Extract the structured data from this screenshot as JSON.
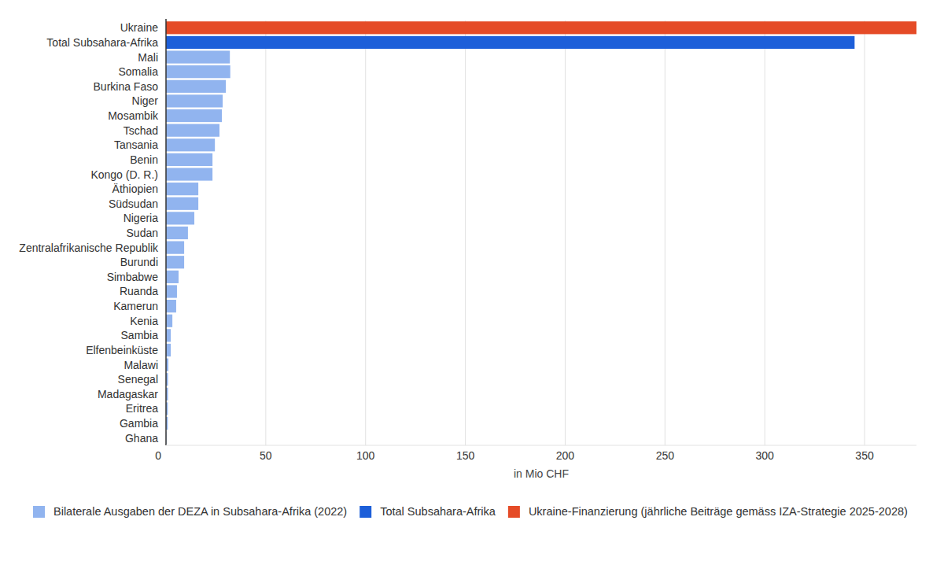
{
  "chart_data": {
    "type": "bar",
    "orientation": "horizontal",
    "x_label": "in Mio CHF",
    "categories": [
      "Ukraine",
      "Total Subsahara-Afrika",
      "Mali",
      "Somalia",
      "Burkina Faso",
      "Niger",
      "Mosambik",
      "Tschad",
      "Tansania",
      "Benin",
      "Kongo (D. R.)",
      "Äthiopien",
      "Südsudan",
      "Nigeria",
      "Sudan",
      "Zentralafrikanische Republik",
      "Burundi",
      "Simbabwe",
      "Ruanda",
      "Kamerun",
      "Kenia",
      "Sambia",
      "Elfenbeinküste",
      "Malawi",
      "Senegal",
      "Madagaskar",
      "Eritrea",
      "Gambia",
      "Ghana"
    ],
    "series": [
      {
        "name": "Bilaterale Ausgaben der DEZA in Subsahara-Afrika (2022)",
        "color": "#91b4ef",
        "values": [
          null,
          null,
          32.0,
          32.2,
          30.0,
          28.4,
          28.0,
          26.8,
          24.5,
          23.3,
          23.3,
          16.2,
          16.2,
          14.2,
          11.0,
          9.1,
          9.1,
          6.3,
          5.5,
          5.1,
          3.2,
          2.4,
          2.4,
          1.2,
          1.0,
          1.0,
          0.9,
          0.9,
          0.2
        ]
      },
      {
        "name": "Total Subsahara-Afrika",
        "color": "#1d5fd9",
        "values": [
          null,
          345,
          null,
          null,
          null,
          null,
          null,
          null,
          null,
          null,
          null,
          null,
          null,
          null,
          null,
          null,
          null,
          null,
          null,
          null,
          null,
          null,
          null,
          null,
          null,
          null,
          null,
          null,
          null
        ]
      },
      {
        "name": "Ukraine-Finanzierung (jährliche Beiträge gemäss IZA-Strategie 2025-2028)",
        "color": "#e54b27",
        "values": [
          376,
          null,
          null,
          null,
          null,
          null,
          null,
          null,
          null,
          null,
          null,
          null,
          null,
          null,
          null,
          null,
          null,
          null,
          null,
          null,
          null,
          null,
          null,
          null,
          null,
          null,
          null,
          null,
          null
        ]
      }
    ],
    "xlim": [
      0,
      376
    ],
    "xticks": [
      0,
      50,
      100,
      150,
      200,
      250,
      300,
      350
    ],
    "grid": true,
    "legend": "bottom"
  }
}
